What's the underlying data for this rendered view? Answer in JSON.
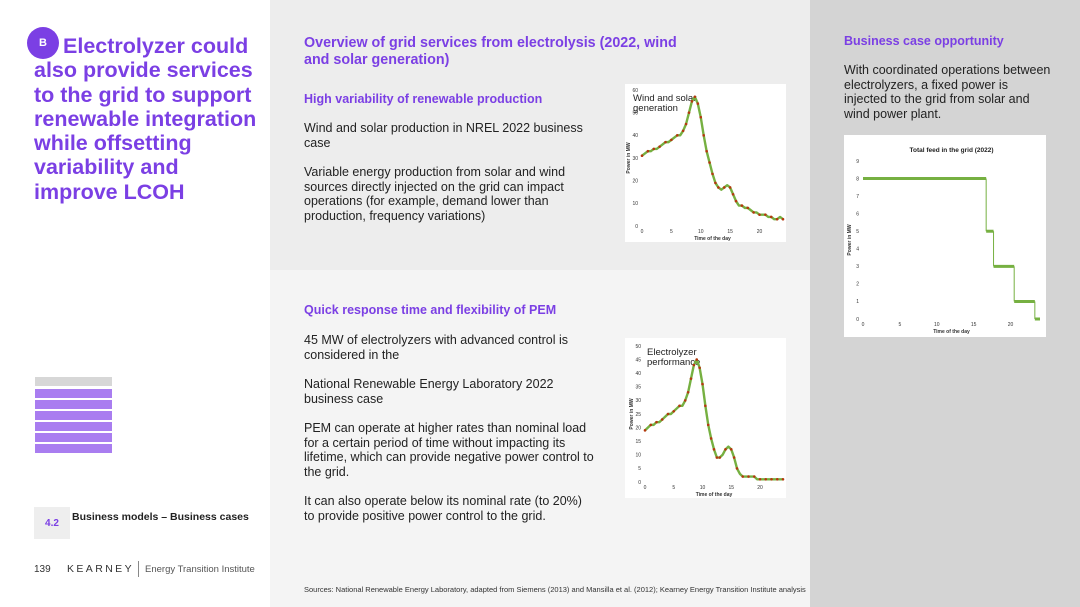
{
  "badge": "B",
  "main_title": "Electrolyzer could also provide services to the grid to support renewable integration while offsetting variability and improve LCOH",
  "section": {
    "number": "4.2",
    "label": "Business models – Business cases"
  },
  "footer": {
    "page": "139",
    "brand": "KEARNEY",
    "institute": "Energy Transition Institute"
  },
  "overview_title": "Overview of grid services from electrolysis (2022, wind and solar generation)",
  "sec1": {
    "heading": "High variability of renewable production",
    "p1": "Wind and solar production in NREL 2022 business case",
    "p2": "Variable energy production from solar and wind sources directly injected on the grid can impact operations (for example, demand lower than production, frequency variations)"
  },
  "sec2": {
    "heading": "Quick response time and flexibility of PEM",
    "p1": "45 MW of electrolyzers with advanced control is considered in the",
    "p2": "National Renewable Energy Laboratory 2022 business case",
    "p3": "PEM can operate at higher rates than nominal load for a certain period of time without impacting its lifetime, which can provide negative power control to the grid.",
    "p4": "It can also operate below its nominal rate (to 20%) to provide positive power control to the grid."
  },
  "biz": {
    "heading": "Business case opportunity",
    "text": "With coordinated operations between electrolyzers, a fixed power is injected to the grid from solar and wind power plant."
  },
  "sources": "Sources: National Renewable Energy Laboratory, adapted from Siemens (2013) and Mansilla et al. (2012); Kearney Energy Transition Institute analysis",
  "colors": {
    "purple": "#7b3fe4",
    "light_purple": "#a97df0",
    "green": "#76b041",
    "dot": "#b5380f"
  },
  "chart_data": [
    {
      "type": "line",
      "title": "Wind and solar generation",
      "xlabel": "Time of the day",
      "ylabel": "Power in MW",
      "xlim": [
        0,
        24
      ],
      "ylim": [
        0,
        60
      ],
      "xticks": [
        0,
        5,
        10,
        15,
        20
      ],
      "yticks": [
        0,
        10,
        20,
        30,
        40,
        50,
        60
      ],
      "x": [
        0,
        0.5,
        1,
        1.5,
        2,
        2.5,
        3,
        3.5,
        4,
        4.5,
        5,
        5.5,
        6,
        6.5,
        7,
        7.5,
        8,
        8.5,
        9,
        9.5,
        10,
        10.5,
        11,
        11.5,
        12,
        12.5,
        13,
        13.5,
        14,
        14.5,
        15,
        15.5,
        16,
        16.5,
        17,
        17.5,
        18,
        18.5,
        19,
        19.5,
        20,
        20.5,
        21,
        21.5,
        22,
        22.5,
        23,
        23.5,
        24
      ],
      "values": [
        31,
        32,
        33,
        33,
        34,
        34,
        35,
        36,
        37,
        37,
        38,
        39,
        40,
        40,
        42,
        45,
        50,
        55,
        57,
        54,
        48,
        40,
        33,
        28,
        23,
        19,
        17,
        16,
        17,
        18,
        17,
        14,
        11,
        9,
        9,
        8,
        8,
        7,
        6,
        6,
        5,
        5,
        5,
        4,
        4,
        3,
        3,
        4,
        3
      ]
    },
    {
      "type": "line",
      "title": "Electrolyzer performance",
      "xlabel": "Time of the day",
      "ylabel": "Power in MW",
      "xlim": [
        0,
        24
      ],
      "ylim": [
        0,
        50
      ],
      "xticks": [
        0,
        5,
        10,
        15,
        20
      ],
      "yticks": [
        0,
        5,
        10,
        15,
        20,
        25,
        30,
        35,
        40,
        45,
        50
      ],
      "x": [
        0,
        0.5,
        1,
        1.5,
        2,
        2.5,
        3,
        3.5,
        4,
        4.5,
        5,
        5.5,
        6,
        6.5,
        7,
        7.5,
        8,
        8.5,
        9,
        9.5,
        10,
        10.5,
        11,
        11.5,
        12,
        12.5,
        13,
        13.5,
        14,
        14.5,
        15,
        15.5,
        16,
        16.5,
        17,
        17.5,
        18,
        18.5,
        19,
        19.5,
        20,
        20.5,
        21,
        21.5,
        22,
        22.5,
        23,
        23.5,
        24
      ],
      "values": [
        19,
        20,
        21,
        21,
        22,
        22,
        23,
        24,
        25,
        25,
        26,
        27,
        28,
        28,
        30,
        33,
        38,
        43,
        45,
        42,
        36,
        28,
        21,
        16,
        12,
        9,
        9,
        10,
        12,
        13,
        12,
        9,
        5,
        3,
        2,
        2,
        2,
        2,
        2,
        1,
        1,
        1,
        1,
        1,
        1,
        1,
        1,
        1,
        1
      ]
    },
    {
      "type": "line",
      "title": "Total feed in the grid  (2022)",
      "xlabel": "Time of the day",
      "ylabel": "Power in MW",
      "xlim": [
        0,
        24
      ],
      "ylim": [
        0,
        9
      ],
      "xticks": [
        0,
        5,
        10,
        15,
        20
      ],
      "yticks": [
        0,
        1,
        2,
        3,
        4,
        5,
        6,
        7,
        8,
        9
      ],
      "steps": [
        {
          "x0": 0,
          "x1": 16.7,
          "value": 8
        },
        {
          "x0": 16.7,
          "x1": 17.7,
          "value": 5
        },
        {
          "x0": 17.7,
          "x1": 20.5,
          "value": 3
        },
        {
          "x0": 20.5,
          "x1": 23.3,
          "value": 1
        },
        {
          "x0": 23.3,
          "x1": 24,
          "value": 0
        }
      ]
    }
  ]
}
